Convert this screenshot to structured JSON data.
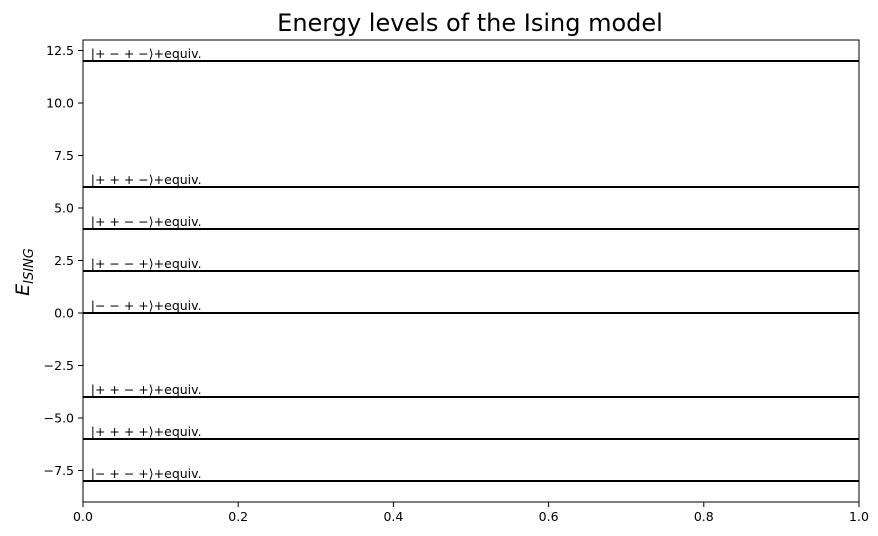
{
  "chart_data": {
    "type": "line",
    "title": "Energy levels of the Ising model",
    "xlabel": "",
    "ylabel": "E",
    "ylabel_subscript": "ISING",
    "xlim": [
      0,
      1
    ],
    "ylim": [
      -9,
      13
    ],
    "x_ticks": [
      "0.0",
      "0.2",
      "0.4",
      "0.6",
      "0.8",
      "1.0"
    ],
    "x_tick_values": [
      0,
      0.2,
      0.4,
      0.6,
      0.8,
      1.0
    ],
    "y_ticks": [
      "−7.5",
      "−5.0",
      "−2.5",
      "0.0",
      "2.5",
      "5.0",
      "7.5",
      "10.0",
      "12.5"
    ],
    "y_tick_values": [
      -7.5,
      -5.0,
      -2.5,
      0.0,
      2.5,
      5.0,
      7.5,
      10.0,
      12.5
    ],
    "grid": false,
    "line_color": "#000000",
    "levels": [
      {
        "energy": 12,
        "label": "|+ − + −⟩+equiv."
      },
      {
        "energy": 6,
        "label": "|+ + + −⟩+equiv."
      },
      {
        "energy": 4,
        "label": "|+ + − −⟩+equiv."
      },
      {
        "energy": 2,
        "label": "|+ − − +⟩+equiv."
      },
      {
        "energy": 0,
        "label": "|− − + +⟩+equiv."
      },
      {
        "energy": -4,
        "label": "|+ + − +⟩+equiv."
      },
      {
        "energy": -6,
        "label": "|+ + + +⟩+equiv."
      },
      {
        "energy": -8,
        "label": "|− + − +⟩+equiv."
      }
    ]
  }
}
